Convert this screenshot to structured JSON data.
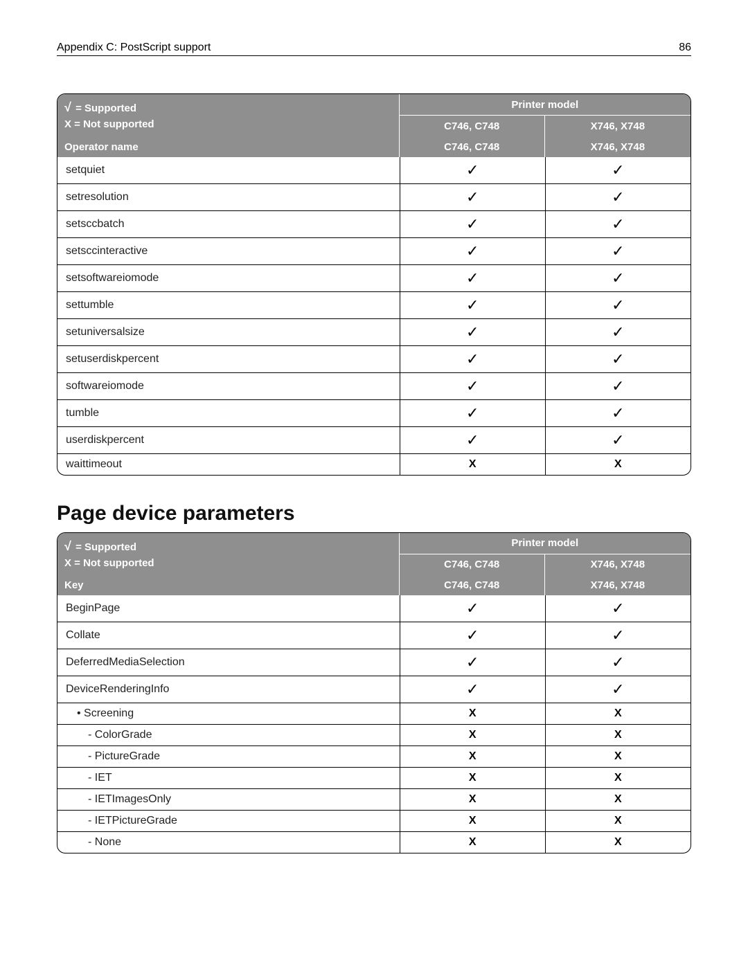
{
  "header": {
    "title": "Appendix C: PostScript support",
    "pageNumber": "86"
  },
  "legend": {
    "supported": "= Supported",
    "check_glyph": "√",
    "notSupported": "X = Not supported"
  },
  "models": {
    "heading": "Printer model",
    "col1": "C746, C748",
    "col2": "X746, X748"
  },
  "table1": {
    "nameHeader": "Operator name",
    "rows": [
      {
        "name": "setquiet",
        "c": "✓",
        "x": "✓",
        "indent": 0
      },
      {
        "name": "setresolution",
        "c": "✓",
        "x": "✓",
        "indent": 0
      },
      {
        "name": "setsccbatch",
        "c": "✓",
        "x": "✓",
        "indent": 0
      },
      {
        "name": "setsccinteractive",
        "c": "✓",
        "x": "✓",
        "indent": 0
      },
      {
        "name": "setsoftwareiomode",
        "c": "✓",
        "x": "✓",
        "indent": 0
      },
      {
        "name": "settumble",
        "c": "✓",
        "x": "✓",
        "indent": 0
      },
      {
        "name": "setuniversalsize",
        "c": "✓",
        "x": "✓",
        "indent": 0
      },
      {
        "name": "setuserdiskpercent",
        "c": "✓",
        "x": "✓",
        "indent": 0
      },
      {
        "name": "softwareiomode",
        "c": "✓",
        "x": "✓",
        "indent": 0
      },
      {
        "name": "tumble",
        "c": "✓",
        "x": "✓",
        "indent": 0
      },
      {
        "name": "userdiskpercent",
        "c": "✓",
        "x": "✓",
        "indent": 0
      },
      {
        "name": "waittimeout",
        "c": "X",
        "x": "X",
        "indent": 0
      }
    ]
  },
  "sectionTitle": "Page device parameters",
  "table2": {
    "nameHeader": "Key",
    "rows": [
      {
        "name": "BeginPage",
        "c": "✓",
        "x": "✓",
        "indent": 0
      },
      {
        "name": "Collate",
        "c": "✓",
        "x": "✓",
        "indent": 0
      },
      {
        "name": "DeferredMediaSelection",
        "c": "✓",
        "x": "✓",
        "indent": 0
      },
      {
        "name": "DeviceRenderingInfo",
        "c": "✓",
        "x": "✓",
        "indent": 0
      },
      {
        "name": "•  Screening",
        "c": "X",
        "x": "X",
        "indent": 1
      },
      {
        "name": "-  ColorGrade",
        "c": "X",
        "x": "X",
        "indent": 2
      },
      {
        "name": "-  PictureGrade",
        "c": "X",
        "x": "X",
        "indent": 2
      },
      {
        "name": "-  IET",
        "c": "X",
        "x": "X",
        "indent": 2
      },
      {
        "name": "-  IETImagesOnly",
        "c": "X",
        "x": "X",
        "indent": 2
      },
      {
        "name": "-  IETPictureGrade",
        "c": "X",
        "x": "X",
        "indent": 2
      },
      {
        "name": "-  None",
        "c": "X",
        "x": "X",
        "indent": 2
      }
    ]
  }
}
